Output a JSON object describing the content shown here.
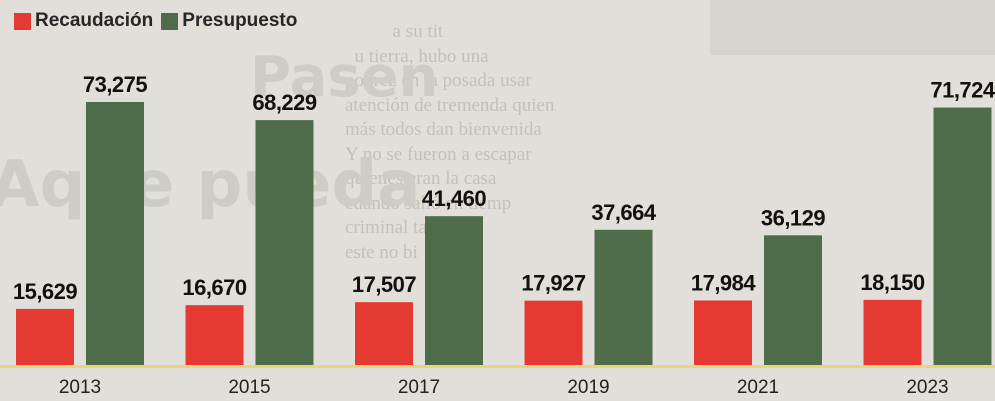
{
  "legend": {
    "recaudacion": "Recaudación",
    "presupuesto": "Presupuesto"
  },
  "colors": {
    "recaudacion": "#e53a32",
    "presupuesto": "#4f6c4a",
    "baseline": "#e9d57a"
  },
  "chart_data": {
    "type": "bar",
    "categories": [
      "2013",
      "2015",
      "2017",
      "2019",
      "2021",
      "2023"
    ],
    "series": [
      {
        "name": "Recaudación",
        "values": [
          15629,
          16670,
          17507,
          17927,
          17984,
          18150
        ],
        "labels": [
          "15,629",
          "16,670",
          "17,507",
          "17,927",
          "17,984",
          "18,150"
        ]
      },
      {
        "name": "Presupuesto",
        "values": [
          73275,
          68229,
          41460,
          37664,
          36129,
          71724
        ],
        "labels": [
          "73,275",
          "68,229",
          "41,460",
          "37,664",
          "36,129",
          "71,724"
        ]
      }
    ],
    "title": "",
    "xlabel": "",
    "ylabel": "",
    "legend_position": "top-left",
    "grid": false
  }
}
